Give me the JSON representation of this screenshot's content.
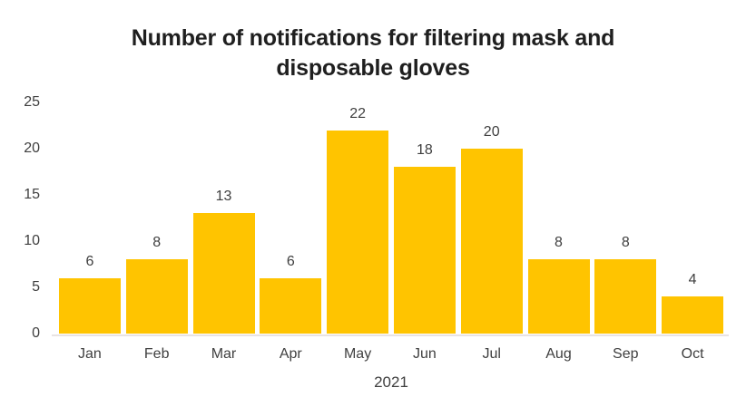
{
  "title": {
    "text": "Number of notifications for filtering mask and disposable gloves",
    "line1": "Number of notifications for filtering mask and",
    "line2": "disposable gloves"
  },
  "colors": {
    "bar": "#FFC400",
    "title_text": "#1F1F1F",
    "axis_text": "#3F3F3F",
    "baseline": "#E8E3E3",
    "background": "#FFFFFF"
  },
  "chart_data": {
    "type": "bar",
    "categories": [
      "Jan",
      "Feb",
      "Mar",
      "Apr",
      "May",
      "Jun",
      "Jul",
      "Aug",
      "Sep",
      "Oct"
    ],
    "values": [
      6,
      8,
      13,
      6,
      22,
      18,
      20,
      8,
      8,
      4
    ],
    "title": "Number of notifications for filtering mask and disposable gloves",
    "xlabel": "2021",
    "ylabel": "",
    "ylim": [
      0,
      25
    ],
    "yticks": [
      0,
      5,
      10,
      15,
      20,
      25
    ],
    "grid": false,
    "legend": null,
    "data_labels": true,
    "bar_color": "#FFC400"
  }
}
